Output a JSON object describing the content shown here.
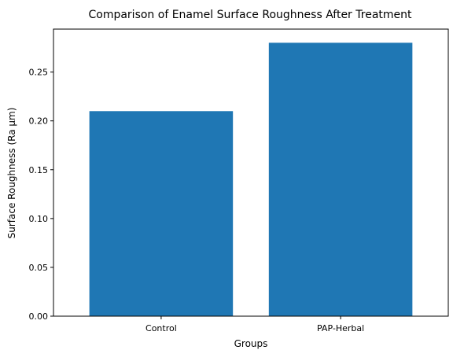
{
  "chart_data": {
    "type": "bar",
    "title": "Comparison of Enamel Surface Roughness After Treatment",
    "xlabel": "Groups",
    "ylabel": "Surface Roughness (Ra µm)",
    "categories": [
      "Control",
      "PAP-Herbal"
    ],
    "values": [
      0.21,
      0.28
    ],
    "ylim": [
      0,
      0.294
    ],
    "yticks": [
      0.0,
      0.05,
      0.1,
      0.15,
      0.2,
      0.25
    ],
    "ytick_labels": [
      "0.00",
      "0.05",
      "0.10",
      "0.15",
      "0.20",
      "0.25"
    ],
    "grid": false,
    "legend": "none",
    "bar_color": "#1f77b4"
  }
}
